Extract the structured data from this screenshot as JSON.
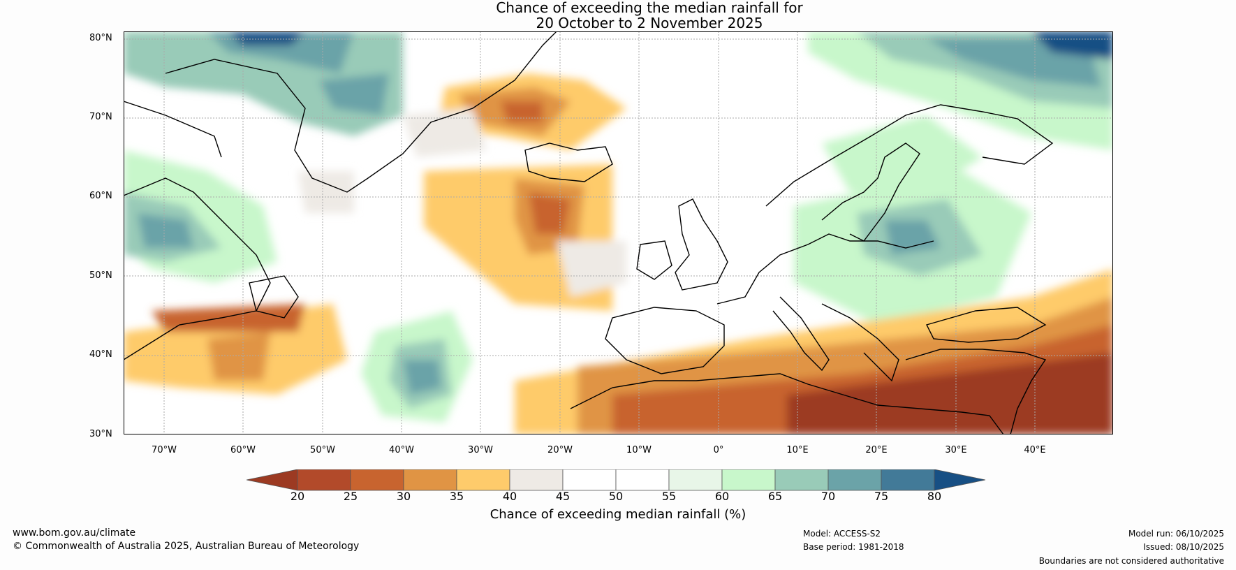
{
  "title": {
    "line1": "Chance of exceeding the median rainfall for",
    "line2": "20 October to 2 November 2025"
  },
  "map": {
    "lat_labels": [
      "80°N",
      "70°N",
      "60°N",
      "50°N",
      "40°N",
      "30°N"
    ],
    "lon_labels": [
      "70°W",
      "60°W",
      "50°W",
      "40°W",
      "30°W",
      "20°W",
      "10°W",
      "0°",
      "10°E",
      "20°E",
      "30°E",
      "40°E"
    ]
  },
  "colorbar": {
    "label": "Chance of exceeding median rainfall (%)",
    "ticks": [
      "20",
      "25",
      "30",
      "35",
      "40",
      "45",
      "50",
      "55",
      "60",
      "65",
      "70",
      "75",
      "80"
    ],
    "colors": [
      "#9c3a22",
      "#b24a2a",
      "#c8642f",
      "#e09444",
      "#fecb6b",
      "#eeeae5",
      "#ffffff",
      "#ffffff",
      "#e8f6e8",
      "#c8f7cb",
      "#99cbb8",
      "#6ba3a8",
      "#427a98",
      "#174f84"
    ]
  },
  "footer": {
    "url": "www.bom.gov.au/climate",
    "copyright": "© Commonwealth of Australia 2025, Australian Bureau of Meteorology",
    "model": "Model: ACCESS-S2",
    "base_period": "Base period: 1981-2018",
    "model_run": "Model run: 06/10/2025",
    "issued": "Issued: 08/10/2025",
    "disclaimer": "Boundaries are not considered authoritative"
  }
}
